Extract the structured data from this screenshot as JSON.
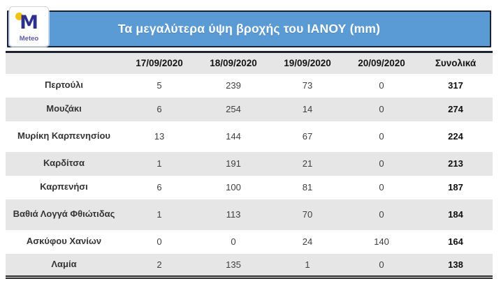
{
  "brand": {
    "logo_letter": "M",
    "logo_wordmark": "Meteo"
  },
  "header": {
    "title": "Τα μεγαλύτερα ύψη βροχής του ΙΑΝΟΥ (mm)"
  },
  "colors": {
    "banner_blue": "#5B9BD5",
    "border_dark_navy": "#1B2130",
    "row_alt_gray": "#E7E6E6",
    "logo_navy": "#2B2F8E",
    "logo_yellow": "#F2C216",
    "title_text": "#FFFFFF"
  },
  "chart_data": {
    "type": "table",
    "title": "Τα μεγαλύτερα ύψη βροχής του ΙΑΝΟΥ (mm)",
    "columns": [
      "17/09/2020",
      "18/09/2020",
      "19/09/2020",
      "20/09/2020",
      "Συνολικά"
    ],
    "rows": [
      {
        "station": "Περτούλι",
        "values": [
          5,
          239,
          73,
          0,
          317
        ]
      },
      {
        "station": "Μουζάκι",
        "values": [
          6,
          254,
          14,
          0,
          274
        ]
      },
      {
        "station": "Μυρίκη Καρπενησίου",
        "values": [
          13,
          144,
          67,
          0,
          224
        ]
      },
      {
        "station": "Καρδίτσα",
        "values": [
          1,
          191,
          21,
          0,
          213
        ]
      },
      {
        "station": "Καρπενήσι",
        "values": [
          6,
          100,
          81,
          0,
          187
        ]
      },
      {
        "station": "Βαθιά Λογγά Φθιώτιδας",
        "values": [
          1,
          113,
          70,
          0,
          184
        ]
      },
      {
        "station": "Ασκύφου Χανίων",
        "values": [
          0,
          0,
          24,
          140,
          164
        ]
      },
      {
        "station": "Λαμία",
        "values": [
          2,
          135,
          1,
          0,
          138
        ]
      }
    ],
    "layout": {
      "zebra_striping": true,
      "totals_column_bold": true,
      "units": "mm"
    }
  }
}
